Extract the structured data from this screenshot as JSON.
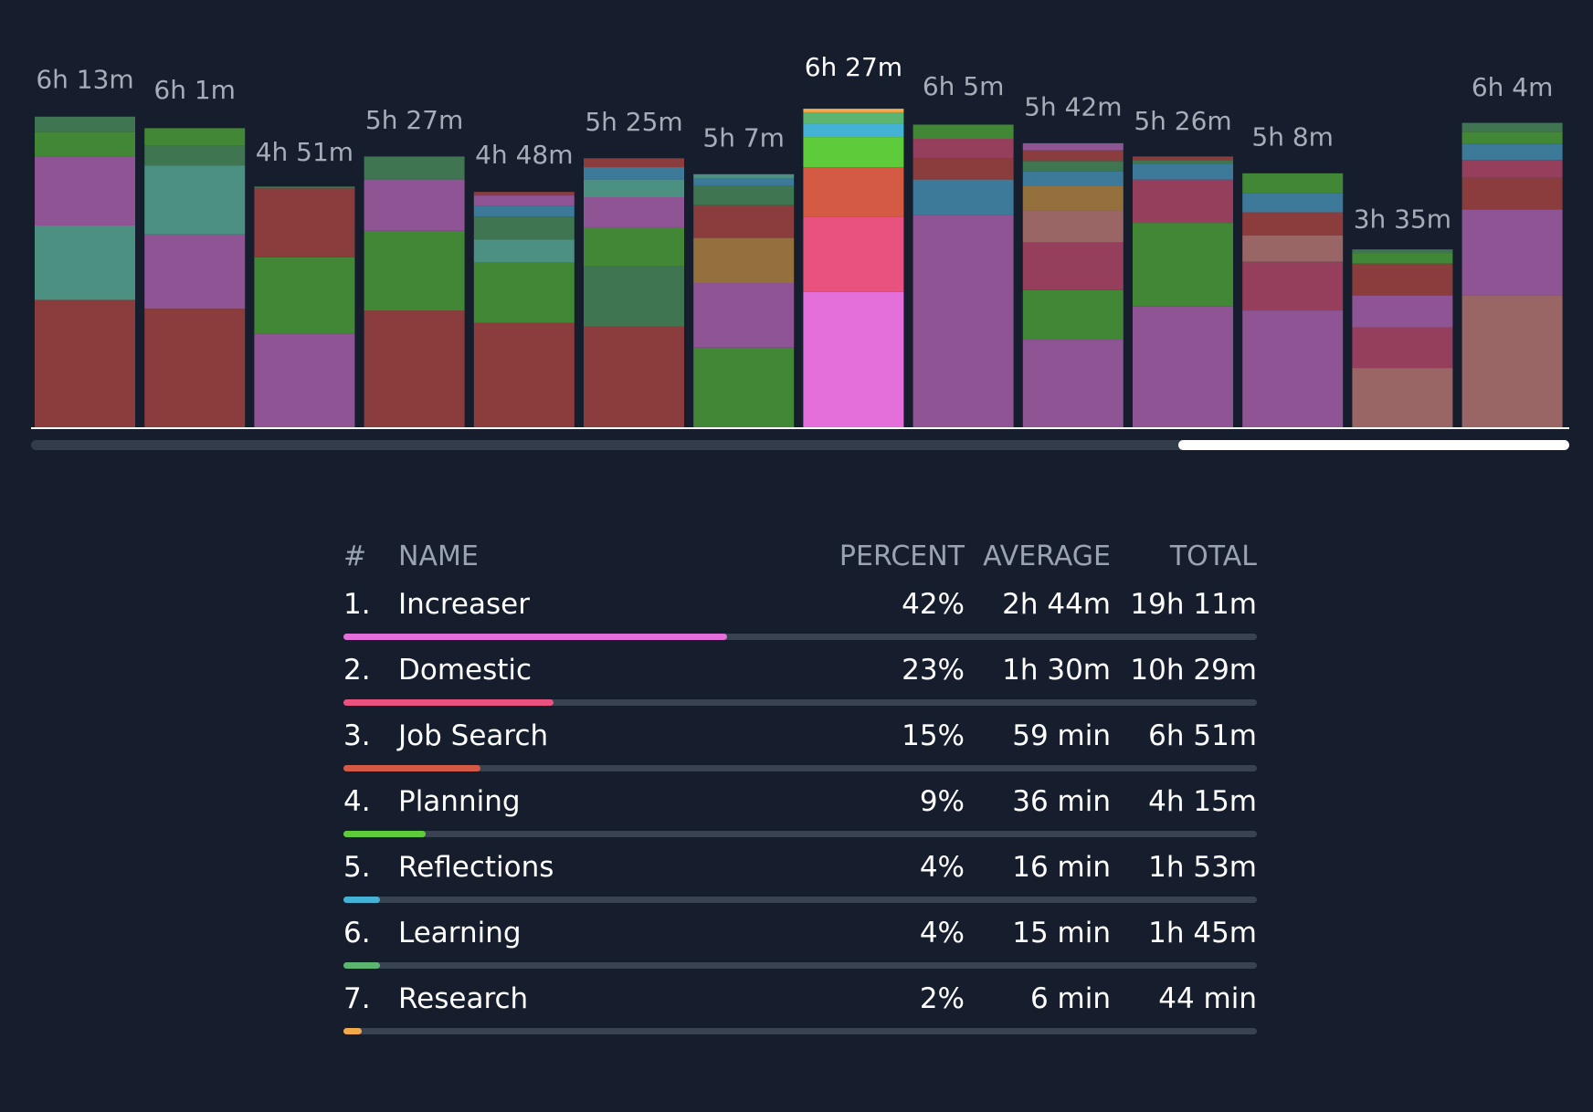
{
  "chart_data": {
    "type": "bar",
    "stacked": true,
    "ylim": [
      0,
      390
    ],
    "categories": [
      "",
      "",
      "",
      "",
      "",
      "",
      "",
      "",
      "",
      "",
      "",
      "",
      "",
      ""
    ],
    "bar_labels": [
      "6h 13m",
      "6h 1m",
      "4h 51m",
      "5h 27m",
      "4h 48m",
      "5h 25m",
      "5h 7m",
      "6h 27m",
      "6h 5m",
      "5h 42m",
      "5h 26m",
      "5h 8m",
      "3h 35m",
      "6h 4m"
    ],
    "highlighted_index": 7,
    "bars": [
      {
        "total": 373,
        "segments": [
          {
            "v": 144,
            "c": "#8b3d3d"
          },
          {
            "v": 84,
            "c": "#4c9082"
          },
          {
            "v": 78,
            "c": "#8e5494"
          },
          {
            "v": 28,
            "c": "#428735"
          },
          {
            "v": 17,
            "c": "#3f7651"
          }
        ]
      },
      {
        "total": 361,
        "segments": [
          {
            "v": 134,
            "c": "#8b3d3d"
          },
          {
            "v": 84,
            "c": "#8e5494"
          },
          {
            "v": 78,
            "c": "#4c9082"
          },
          {
            "v": 22,
            "c": "#3f7651"
          },
          {
            "v": 20,
            "c": "#428735"
          }
        ]
      },
      {
        "total": 291,
        "segments": [
          {
            "v": 106,
            "c": "#8e5494"
          },
          {
            "v": 86,
            "c": "#428735"
          },
          {
            "v": 78,
            "c": "#8b3d3d"
          },
          {
            "v": 2,
            "c": "#3f7651"
          }
        ]
      },
      {
        "total": 327,
        "segments": [
          {
            "v": 132,
            "c": "#8b3d3d"
          },
          {
            "v": 90,
            "c": "#428735"
          },
          {
            "v": 58,
            "c": "#8e5494"
          },
          {
            "v": 26,
            "c": "#3f7651"
          }
        ]
      },
      {
        "total": 288,
        "segments": [
          {
            "v": 118,
            "c": "#8b3d3d"
          },
          {
            "v": 68,
            "c": "#428735"
          },
          {
            "v": 26,
            "c": "#4c9082"
          },
          {
            "v": 26,
            "c": "#3f7651"
          },
          {
            "v": 12,
            "c": "#3d7a99"
          },
          {
            "v": 12,
            "c": "#8e5494"
          },
          {
            "v": 4,
            "c": "#8b3d3d"
          }
        ]
      },
      {
        "total": 325,
        "segments": [
          {
            "v": 114,
            "c": "#8b3d3d"
          },
          {
            "v": 68,
            "c": "#3f7651"
          },
          {
            "v": 44,
            "c": "#428735"
          },
          {
            "v": 34,
            "c": "#8e5494"
          },
          {
            "v": 20,
            "c": "#4c9082"
          },
          {
            "v": 14,
            "c": "#3d7a99"
          },
          {
            "v": 10,
            "c": "#8b3d3d"
          }
        ]
      },
      {
        "total": 307,
        "segments": [
          {
            "v": 90,
            "c": "#428735"
          },
          {
            "v": 73,
            "c": "#8e5494"
          },
          {
            "v": 51,
            "c": "#94703d"
          },
          {
            "v": 37,
            "c": "#8b3d3d"
          },
          {
            "v": 22,
            "c": "#3f7651"
          },
          {
            "v": 8,
            "c": "#3d7a99"
          },
          {
            "v": 5,
            "c": "#4c9082"
          }
        ]
      },
      {
        "total": 387,
        "segments": [
          {
            "v": 153,
            "c": "#e46fda"
          },
          {
            "v": 85,
            "c": "#e9527e"
          },
          {
            "v": 56,
            "c": "#d55a43"
          },
          {
            "v": 34,
            "c": "#5dcb3a"
          },
          {
            "v": 15,
            "c": "#44b2d4"
          },
          {
            "v": 13,
            "c": "#5bb571"
          },
          {
            "v": 4,
            "c": "#f3a84a"
          }
        ]
      },
      {
        "total": 365,
        "segments": [
          {
            "v": 240,
            "c": "#8e5494"
          },
          {
            "v": 40,
            "c": "#3d7a99"
          },
          {
            "v": 24,
            "c": "#8b3d3d"
          },
          {
            "v": 22,
            "c": "#953f5c"
          },
          {
            "v": 16,
            "c": "#428735"
          }
        ]
      },
      {
        "total": 342,
        "segments": [
          {
            "v": 99,
            "c": "#8e5494"
          },
          {
            "v": 56,
            "c": "#428735"
          },
          {
            "v": 54,
            "c": "#953f5c"
          },
          {
            "v": 36,
            "c": "#9a6565"
          },
          {
            "v": 28,
            "c": "#94703d"
          },
          {
            "v": 16,
            "c": "#3d7a99"
          },
          {
            "v": 12,
            "c": "#3f7651"
          },
          {
            "v": 12,
            "c": "#8b3d3d"
          },
          {
            "v": 8,
            "c": "#8e5494"
          }
        ]
      },
      {
        "total": 326,
        "segments": [
          {
            "v": 137,
            "c": "#8e5494"
          },
          {
            "v": 94,
            "c": "#428735"
          },
          {
            "v": 49,
            "c": "#953f5c"
          },
          {
            "v": 18,
            "c": "#3d7a99"
          },
          {
            "v": 4,
            "c": "#3f7651"
          },
          {
            "v": 4,
            "c": "#8b3d3d"
          }
        ]
      },
      {
        "total": 308,
        "segments": [
          {
            "v": 132,
            "c": "#8e5494"
          },
          {
            "v": 55,
            "c": "#953f5c"
          },
          {
            "v": 30,
            "c": "#9a6565"
          },
          {
            "v": 26,
            "c": "#8b3d3d"
          },
          {
            "v": 22,
            "c": "#3d7a99"
          },
          {
            "v": 22,
            "c": "#428735"
          }
        ]
      },
      {
        "total": 215,
        "segments": [
          {
            "v": 67,
            "c": "#9a6565"
          },
          {
            "v": 46,
            "c": "#953f5c"
          },
          {
            "v": 36,
            "c": "#8e5494"
          },
          {
            "v": 36,
            "c": "#8b3d3d"
          },
          {
            "v": 12,
            "c": "#428735"
          },
          {
            "v": 4,
            "c": "#3f7651"
          }
        ]
      },
      {
        "total": 364,
        "segments": [
          {
            "v": 149,
            "c": "#9a6565"
          },
          {
            "v": 97,
            "c": "#8e5494"
          },
          {
            "v": 36,
            "c": "#8b3d3d"
          },
          {
            "v": 20,
            "c": "#953f5c"
          },
          {
            "v": 18,
            "c": "#3d7a99"
          },
          {
            "v": 14,
            "c": "#428735"
          },
          {
            "v": 10,
            "c": "#3f7651"
          }
        ]
      }
    ],
    "colors": {
      "label_normal": "#a6adb8",
      "label_highlight": "#ffffff",
      "axis": "#ffffff",
      "background": "#161e2e"
    }
  },
  "table": {
    "headers": {
      "num": "#",
      "name": "NAME",
      "percent": "PERCENT",
      "average": "AVERAGE",
      "total": "TOTAL"
    },
    "rows": [
      {
        "num": "1.",
        "name": "Increaser",
        "percent": "42%",
        "average": "2h 44m",
        "total": "19h 11m",
        "share": 0.42,
        "color": "#e46fda"
      },
      {
        "num": "2.",
        "name": "Domestic",
        "percent": "23%",
        "average": "1h 30m",
        "total": "10h 29m",
        "share": 0.23,
        "color": "#e9527e"
      },
      {
        "num": "3.",
        "name": "Job Search",
        "percent": "15%",
        "average": "59 min",
        "total": "6h 51m",
        "share": 0.15,
        "color": "#d55a43"
      },
      {
        "num": "4.",
        "name": "Planning",
        "percent": "9%",
        "average": "36 min",
        "total": "4h 15m",
        "share": 0.09,
        "color": "#5dcb3a"
      },
      {
        "num": "5.",
        "name": "Reflections",
        "percent": "4%",
        "average": "16 min",
        "total": "1h 53m",
        "share": 0.04,
        "color": "#44b2d4"
      },
      {
        "num": "6.",
        "name": "Learning",
        "percent": "4%",
        "average": "15 min",
        "total": "1h 45m",
        "share": 0.04,
        "color": "#5bb571"
      },
      {
        "num": "7.",
        "name": "Research",
        "percent": "2%",
        "average": "6 min",
        "total": "44 min",
        "share": 0.02,
        "color": "#f3a84a"
      }
    ]
  },
  "scroll": {
    "position": 0.83,
    "visible_fraction": 0.25
  }
}
